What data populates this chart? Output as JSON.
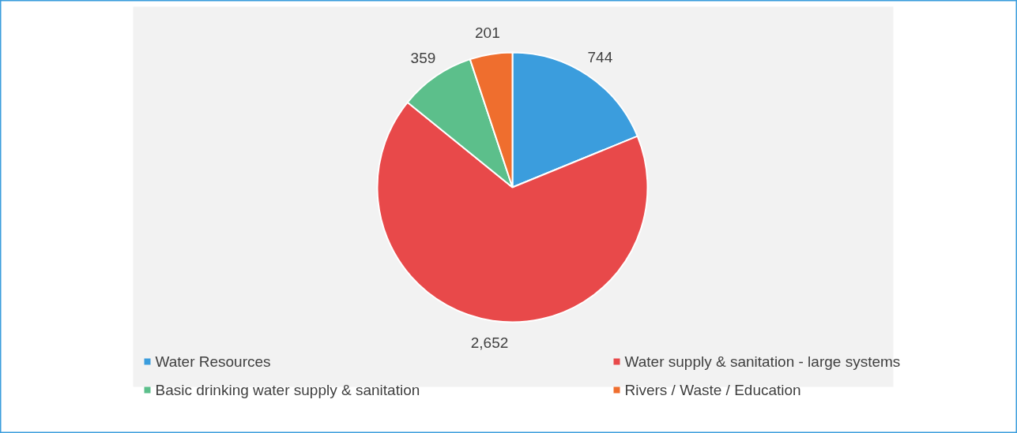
{
  "chart_data": {
    "type": "pie",
    "categories": [
      "Water Resources",
      "Water supply & sanitation - large systems",
      "Basic drinking water supply & sanitation",
      "Rivers / Waste / Education"
    ],
    "values": [
      744,
      2652,
      359,
      201
    ],
    "colors": [
      "#3b9ddd",
      "#e8494a",
      "#5cbf8b",
      "#ef6e2e"
    ],
    "value_labels": [
      "744",
      "2,652",
      "359",
      "201"
    ],
    "legend": "bottom"
  }
}
